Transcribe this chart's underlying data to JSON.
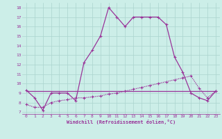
{
  "xlabel": "Windchill (Refroidissement éolien,°C)",
  "bg_color": "#cceee8",
  "grid_color": "#aad4ce",
  "line_color": "#993399",
  "xlim": [
    -0.5,
    23.5
  ],
  "ylim": [
    6.8,
    18.5
  ],
  "yticks": [
    7,
    8,
    9,
    10,
    11,
    12,
    13,
    14,
    15,
    16,
    17,
    18
  ],
  "xticks": [
    0,
    1,
    2,
    3,
    4,
    5,
    6,
    7,
    8,
    9,
    10,
    11,
    12,
    13,
    14,
    15,
    16,
    17,
    18,
    19,
    20,
    21,
    22,
    23
  ],
  "line1_x": [
    0,
    23
  ],
  "line1_y": [
    9.2,
    9.2
  ],
  "line2_x": [
    0,
    1,
    2,
    3,
    4,
    5,
    6,
    7,
    8,
    9,
    10,
    11,
    12,
    13,
    14,
    15,
    16,
    17,
    18,
    19,
    20,
    21,
    22,
    23
  ],
  "line2_y": [
    7.8,
    7.5,
    7.5,
    8.0,
    8.2,
    8.3,
    8.5,
    8.5,
    8.6,
    8.7,
    8.9,
    9.0,
    9.2,
    9.4,
    9.6,
    9.8,
    10.0,
    10.2,
    10.4,
    10.6,
    10.8,
    9.5,
    8.5,
    9.2
  ],
  "line3_x": [
    0,
    1,
    2,
    3,
    4,
    5,
    6,
    7,
    8,
    9,
    10,
    11,
    12,
    13,
    14,
    15,
    16,
    17,
    18,
    19,
    20,
    21,
    22,
    23
  ],
  "line3_y": [
    9.3,
    8.5,
    7.2,
    9.0,
    9.0,
    9.0,
    8.2,
    12.2,
    13.5,
    15.0,
    18.0,
    17.0,
    16.0,
    17.0,
    17.0,
    17.0,
    17.0,
    16.2,
    12.8,
    11.2,
    9.0,
    8.5,
    8.2,
    9.2
  ],
  "marker_style": "+",
  "marker_size": 3.5,
  "linewidth": 0.9
}
